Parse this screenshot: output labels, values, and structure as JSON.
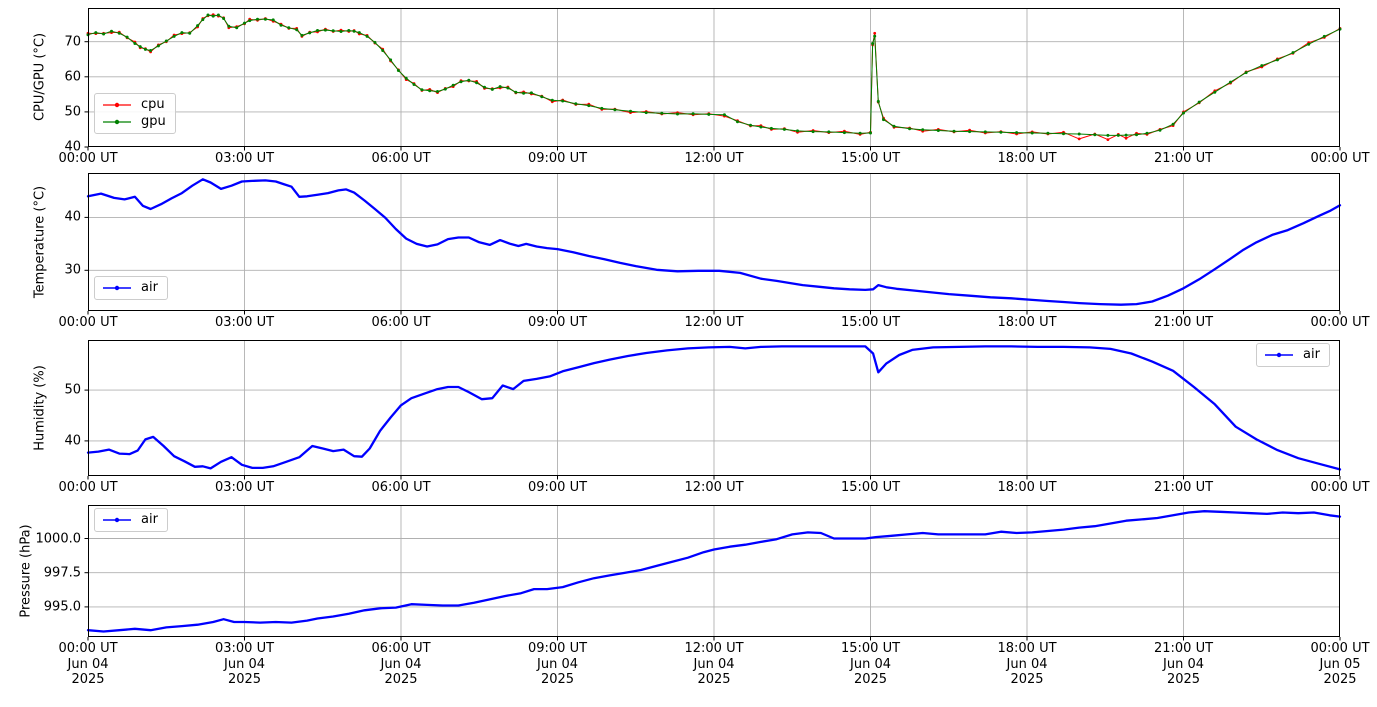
{
  "style": {
    "background": "#ffffff",
    "grid_color": "#b0b0b0",
    "spine_color": "#000000",
    "text_color": "#000000",
    "cpu_color": "#ff0000",
    "gpu_color": "#008000",
    "air_color": "#0000ff"
  },
  "x_axis": {
    "range_hours": [
      0,
      24
    ],
    "major_tick_hours": [
      0,
      3,
      6,
      9,
      12,
      15,
      18,
      21,
      24
    ],
    "tick_labels": [
      "00:00 UT",
      "03:00 UT",
      "06:00 UT",
      "09:00 UT",
      "12:00 UT",
      "15:00 UT",
      "18:00 UT",
      "21:00 UT",
      "00:00 UT"
    ],
    "bottom_date_labels": [
      "Jun 04",
      "Jun 04",
      "Jun 04",
      "Jun 04",
      "Jun 04",
      "Jun 04",
      "Jun 04",
      "Jun 04",
      "Jun 05"
    ],
    "bottom_year_labels": [
      "2025",
      "2025",
      "2025",
      "2025",
      "2025",
      "2025",
      "2025",
      "2025",
      "2025"
    ]
  },
  "chart_data": [
    {
      "type": "line",
      "ylabel": "CPU/GPU (°C)",
      "ylim": [
        40.0,
        79.6
      ],
      "yticks": [
        40,
        50,
        60,
        70
      ],
      "ytick_labels": [
        "40",
        "50",
        "60",
        "70"
      ],
      "grid": true,
      "legend": {
        "position": "lower left",
        "entries": [
          {
            "label": "cpu",
            "color": "#ff0000",
            "lw": 1.2
          },
          {
            "label": "gpu",
            "color": "#008000",
            "lw": 1.2
          }
        ]
      },
      "x": [
        0,
        0.15,
        0.3,
        0.45,
        0.6,
        0.75,
        0.9,
        1.0,
        1.1,
        1.2,
        1.35,
        1.5,
        1.65,
        1.8,
        1.95,
        2.1,
        2.2,
        2.3,
        2.4,
        2.5,
        2.6,
        2.7,
        2.85,
        3.0,
        3.1,
        3.25,
        3.4,
        3.55,
        3.7,
        3.85,
        4.0,
        4.1,
        4.25,
        4.4,
        4.55,
        4.7,
        4.85,
        5.0,
        5.1,
        5.2,
        5.35,
        5.5,
        5.65,
        5.8,
        5.95,
        6.1,
        6.25,
        6.4,
        6.55,
        6.7,
        6.85,
        7.0,
        7.15,
        7.3,
        7.45,
        7.6,
        7.75,
        7.9,
        8.05,
        8.2,
        8.35,
        8.5,
        8.7,
        8.9,
        9.1,
        9.35,
        9.6,
        9.85,
        10.1,
        10.4,
        10.7,
        11.0,
        11.3,
        11.6,
        11.9,
        12.2,
        12.45,
        12.7,
        12.9,
        13.1,
        13.35,
        13.6,
        13.9,
        14.2,
        14.5,
        14.8,
        15.0,
        15.04,
        15.08,
        15.15,
        15.25,
        15.45,
        15.75,
        16.0,
        16.3,
        16.6,
        16.9,
        17.2,
        17.5,
        17.8,
        18.1,
        18.4,
        18.7,
        19.0,
        19.3,
        19.55,
        19.75,
        19.9,
        20.1,
        20.3,
        20.55,
        20.8,
        21.0,
        21.3,
        21.6,
        21.9,
        22.2,
        22.5,
        22.8,
        23.1,
        23.4,
        23.7,
        24.0
      ],
      "series": [
        {
          "name": "cpu",
          "color": "#ff0000",
          "lw": 1.0,
          "marker_r": 1.4,
          "values": [
            72.4,
            72.3,
            72.4,
            72.6,
            72.7,
            71.1,
            69.9,
            68.3,
            68.0,
            67.1,
            69.1,
            70.0,
            71.9,
            72.3,
            72.6,
            74.2,
            76.6,
            77.4,
            77.7,
            77.3,
            76.8,
            74.0,
            74.3,
            75.1,
            76.4,
            76.1,
            76.6,
            75.8,
            75.0,
            73.8,
            73.8,
            71.5,
            72.7,
            72.8,
            73.6,
            72.9,
            73.3,
            72.9,
            73.2,
            72.2,
            71.8,
            69.6,
            67.9,
            64.5,
            62.0,
            59.2,
            58.1,
            56.1,
            56.4,
            55.5,
            56.7,
            57.2,
            58.9,
            58.8,
            58.7,
            56.7,
            56.6,
            56.8,
            57.1,
            55.4,
            55.7,
            55.1,
            54.5,
            52.9,
            53.4,
            52.1,
            52.2,
            50.7,
            50.8,
            49.8,
            50.1,
            49.4,
            49.8,
            49.2,
            49.5,
            48.8,
            47.5,
            46.0,
            46.1,
            45.0,
            45.2,
            44.2,
            44.7,
            44.1,
            44.5,
            43.6,
            44.2,
            69.1,
            72.4,
            52.8,
            48.2,
            45.6,
            45.4,
            44.5,
            45.0,
            44.3,
            44.8,
            44.0,
            44.4,
            43.7,
            44.3,
            43.7,
            44.2,
            42.3,
            43.7,
            42.1,
            43.6,
            42.5,
            43.9,
            43.6,
            45.0,
            46.1,
            50.0,
            52.6,
            56.0,
            58.2,
            61.4,
            62.8,
            65.1,
            66.7,
            69.7,
            71.2,
            73.8
          ]
        },
        {
          "name": "gpu",
          "color": "#008000",
          "lw": 1.0,
          "marker_r": 1.5,
          "values": [
            72.0,
            72.6,
            72.2,
            73.0,
            72.4,
            71.3,
            69.5,
            68.6,
            67.8,
            67.5,
            68.8,
            70.2,
            71.5,
            72.6,
            72.4,
            74.6,
            76.3,
            77.6,
            77.3,
            77.6,
            76.6,
            74.4,
            74.0,
            75.3,
            76.0,
            76.4,
            76.4,
            76.2,
            74.7,
            74.0,
            73.4,
            71.8,
            72.5,
            73.2,
            73.3,
            73.1,
            72.9,
            73.2,
            73.0,
            72.6,
            71.5,
            69.8,
            67.5,
            64.8,
            61.8,
            59.6,
            57.8,
            56.3,
            56.0,
            55.8,
            56.5,
            57.6,
            58.6,
            59.0,
            58.3,
            57.0,
            56.4,
            57.2,
            56.8,
            55.6,
            55.3,
            55.4,
            54.3,
            53.3,
            53.1,
            52.3,
            51.8,
            51.0,
            50.6,
            50.2,
            49.8,
            49.6,
            49.4,
            49.5,
            49.3,
            49.2,
            47.2,
            46.2,
            45.7,
            45.3,
            45.0,
            44.6,
            44.4,
            44.3,
            44.1,
            43.9,
            44.0,
            69.5,
            71.6,
            53.0,
            47.8,
            45.9,
            45.2,
            44.9,
            44.7,
            44.5,
            44.4,
            44.3,
            44.2,
            44.1,
            44.0,
            43.9,
            43.8,
            43.7,
            43.5,
            43.3,
            43.3,
            43.4,
            43.5,
            43.9,
            44.8,
            46.5,
            49.7,
            52.8,
            55.6,
            58.5,
            61.2,
            63.2,
            64.8,
            66.9,
            69.3,
            71.5,
            73.6
          ]
        }
      ]
    },
    {
      "type": "line",
      "ylabel": "Temperature (°C)",
      "ylim": [
        22.3,
        48.4
      ],
      "yticks": [
        30,
        40
      ],
      "ytick_labels": [
        "30",
        "40"
      ],
      "grid": true,
      "legend": {
        "position": "lower left",
        "entries": [
          {
            "label": "air",
            "color": "#0000ff",
            "lw": 1.6
          }
        ]
      },
      "x": [
        0,
        0.25,
        0.5,
        0.7,
        0.9,
        1.05,
        1.2,
        1.4,
        1.6,
        1.8,
        2.0,
        2.2,
        2.35,
        2.55,
        2.75,
        2.95,
        3.15,
        3.4,
        3.6,
        3.75,
        3.9,
        4.05,
        4.2,
        4.4,
        4.6,
        4.8,
        4.95,
        5.1,
        5.3,
        5.5,
        5.7,
        5.9,
        6.1,
        6.3,
        6.5,
        6.7,
        6.9,
        7.1,
        7.3,
        7.5,
        7.7,
        7.9,
        8.1,
        8.25,
        8.4,
        8.6,
        8.8,
        9.0,
        9.3,
        9.6,
        9.9,
        10.2,
        10.5,
        10.9,
        11.3,
        11.7,
        12.1,
        12.5,
        12.9,
        13.2,
        13.45,
        13.7,
        14.0,
        14.3,
        14.6,
        14.9,
        15.05,
        15.15,
        15.3,
        15.5,
        15.8,
        16.1,
        16.5,
        16.9,
        17.3,
        17.7,
        18.1,
        18.4,
        18.7,
        19.0,
        19.4,
        19.8,
        20.1,
        20.4,
        20.7,
        21.0,
        21.3,
        21.6,
        21.9,
        22.15,
        22.4,
        22.7,
        23.0,
        23.3,
        23.6,
        23.8,
        24.0
      ],
      "series": [
        {
          "name": "air",
          "color": "#0000ff",
          "lw": 2.3,
          "marker_r": 0,
          "values": [
            44.0,
            44.5,
            43.7,
            43.4,
            43.9,
            42.2,
            41.6,
            42.5,
            43.6,
            44.6,
            46.0,
            47.2,
            46.6,
            45.4,
            46.0,
            46.8,
            46.9,
            47.0,
            46.8,
            46.3,
            45.8,
            43.9,
            44.0,
            44.3,
            44.6,
            45.1,
            45.3,
            44.7,
            43.2,
            41.6,
            39.9,
            37.8,
            36.0,
            35.0,
            34.5,
            34.9,
            35.9,
            36.2,
            36.2,
            35.3,
            34.8,
            35.7,
            35.0,
            34.6,
            35.0,
            34.5,
            34.2,
            34.0,
            33.4,
            32.7,
            32.1,
            31.4,
            30.8,
            30.1,
            29.8,
            29.9,
            29.9,
            29.5,
            28.4,
            28.0,
            27.6,
            27.2,
            26.9,
            26.6,
            26.4,
            26.3,
            26.4,
            27.2,
            26.8,
            26.5,
            26.2,
            25.9,
            25.5,
            25.2,
            24.9,
            24.7,
            24.4,
            24.2,
            24.0,
            23.8,
            23.6,
            23.5,
            23.6,
            24.1,
            25.2,
            26.6,
            28.3,
            30.2,
            32.2,
            33.9,
            35.3,
            36.7,
            37.6,
            38.9,
            40.3,
            41.2,
            42.3
          ]
        }
      ]
    },
    {
      "type": "line",
      "ylabel": "Humidity (%)",
      "ylim": [
        33.1,
        59.85
      ],
      "yticks": [
        40,
        50
      ],
      "ytick_labels": [
        "40",
        "50"
      ],
      "grid": true,
      "legend": {
        "position": "upper right",
        "entries": [
          {
            "label": "air",
            "color": "#0000ff",
            "lw": 1.6
          }
        ]
      },
      "x": [
        0,
        0.2,
        0.4,
        0.6,
        0.8,
        0.95,
        1.1,
        1.25,
        1.45,
        1.65,
        1.85,
        2.05,
        2.2,
        2.35,
        2.55,
        2.75,
        2.95,
        3.15,
        3.35,
        3.55,
        3.8,
        4.05,
        4.3,
        4.5,
        4.7,
        4.9,
        5.1,
        5.25,
        5.4,
        5.6,
        5.8,
        6.0,
        6.2,
        6.45,
        6.7,
        6.9,
        7.1,
        7.3,
        7.55,
        7.75,
        7.95,
        8.15,
        8.35,
        8.6,
        8.85,
        9.1,
        9.4,
        9.7,
        10.0,
        10.35,
        10.7,
        11.1,
        11.5,
        11.9,
        12.3,
        12.6,
        12.9,
        13.3,
        13.7,
        14.1,
        14.5,
        14.9,
        15.05,
        15.15,
        15.3,
        15.55,
        15.8,
        16.2,
        16.7,
        17.2,
        17.7,
        18.2,
        18.7,
        19.2,
        19.6,
        20.0,
        20.4,
        20.8,
        21.2,
        21.6,
        22.0,
        22.4,
        22.8,
        23.2,
        23.6,
        24.0
      ],
      "series": [
        {
          "name": "air",
          "color": "#0000ff",
          "lw": 2.3,
          "marker_r": 0,
          "values": [
            37.7,
            37.9,
            38.3,
            37.5,
            37.4,
            38.1,
            40.3,
            40.8,
            39.0,
            37.0,
            36.0,
            34.9,
            35.0,
            34.6,
            35.9,
            36.8,
            35.3,
            34.7,
            34.7,
            35.0,
            35.9,
            36.8,
            39.0,
            38.5,
            38.0,
            38.3,
            37.0,
            36.9,
            38.5,
            42.0,
            44.6,
            47.0,
            48.4,
            49.3,
            50.2,
            50.6,
            50.6,
            49.6,
            48.2,
            48.4,
            50.9,
            50.2,
            51.8,
            52.2,
            52.7,
            53.7,
            54.5,
            55.3,
            56.0,
            56.7,
            57.3,
            57.8,
            58.2,
            58.4,
            58.5,
            58.2,
            58.5,
            58.6,
            58.6,
            58.6,
            58.6,
            58.6,
            57.2,
            53.5,
            55.2,
            56.9,
            57.9,
            58.4,
            58.5,
            58.6,
            58.6,
            58.5,
            58.5,
            58.4,
            58.1,
            57.2,
            55.6,
            53.8,
            50.6,
            47.2,
            42.8,
            40.3,
            38.2,
            36.6,
            35.5,
            34.4
          ]
        }
      ]
    },
    {
      "type": "line",
      "ylabel": "Pressure (hPa)",
      "ylim": [
        992.8,
        1002.45
      ],
      "yticks": [
        995.0,
        997.5,
        1000.0
      ],
      "ytick_labels": [
        "995.0",
        "997.5",
        "1000.0"
      ],
      "grid": true,
      "legend": {
        "position": "upper left",
        "entries": [
          {
            "label": "air",
            "color": "#0000ff",
            "lw": 1.6
          }
        ]
      },
      "x": [
        0,
        0.3,
        0.6,
        0.9,
        1.2,
        1.5,
        1.8,
        2.1,
        2.4,
        2.6,
        2.8,
        3.0,
        3.3,
        3.6,
        3.9,
        4.2,
        4.4,
        4.7,
        5.0,
        5.3,
        5.6,
        5.9,
        6.2,
        6.5,
        6.8,
        7.1,
        7.4,
        7.7,
        8.0,
        8.3,
        8.55,
        8.8,
        9.1,
        9.4,
        9.7,
        10.0,
        10.3,
        10.6,
        10.9,
        11.2,
        11.5,
        11.8,
        12.0,
        12.3,
        12.6,
        12.9,
        13.2,
        13.5,
        13.8,
        14.05,
        14.3,
        14.6,
        14.9,
        15.1,
        15.4,
        15.7,
        16.0,
        16.3,
        16.6,
        16.9,
        17.2,
        17.5,
        17.8,
        18.1,
        18.4,
        18.7,
        19.0,
        19.3,
        19.6,
        19.9,
        20.2,
        20.5,
        20.8,
        21.1,
        21.4,
        21.7,
        22.0,
        22.3,
        22.6,
        22.9,
        23.2,
        23.5,
        23.8,
        24.0
      ],
      "series": [
        {
          "name": "air",
          "color": "#0000ff",
          "lw": 2.3,
          "marker_r": 0,
          "values": [
            993.3,
            993.2,
            993.3,
            993.4,
            993.3,
            993.5,
            993.6,
            993.7,
            993.9,
            994.1,
            993.9,
            993.9,
            993.85,
            993.9,
            993.85,
            994.0,
            994.15,
            994.3,
            994.5,
            994.75,
            994.9,
            994.95,
            995.2,
            995.15,
            995.1,
            995.1,
            995.3,
            995.55,
            995.8,
            996.0,
            996.3,
            996.3,
            996.45,
            996.8,
            997.1,
            997.3,
            997.5,
            997.7,
            998.0,
            998.3,
            998.6,
            999.0,
            999.2,
            999.4,
            999.55,
            999.75,
            999.95,
            1000.3,
            1000.45,
            1000.4,
            1000.0,
            1000.0,
            1000.0,
            1000.1,
            1000.2,
            1000.3,
            1000.4,
            1000.3,
            1000.3,
            1000.3,
            1000.3,
            1000.5,
            1000.4,
            1000.45,
            1000.55,
            1000.65,
            1000.8,
            1000.9,
            1001.1,
            1001.3,
            1001.4,
            1001.5,
            1001.7,
            1001.9,
            1002.0,
            1001.95,
            1001.9,
            1001.85,
            1001.8,
            1001.9,
            1001.85,
            1001.9,
            1001.7,
            1001.6
          ]
        }
      ]
    }
  ]
}
